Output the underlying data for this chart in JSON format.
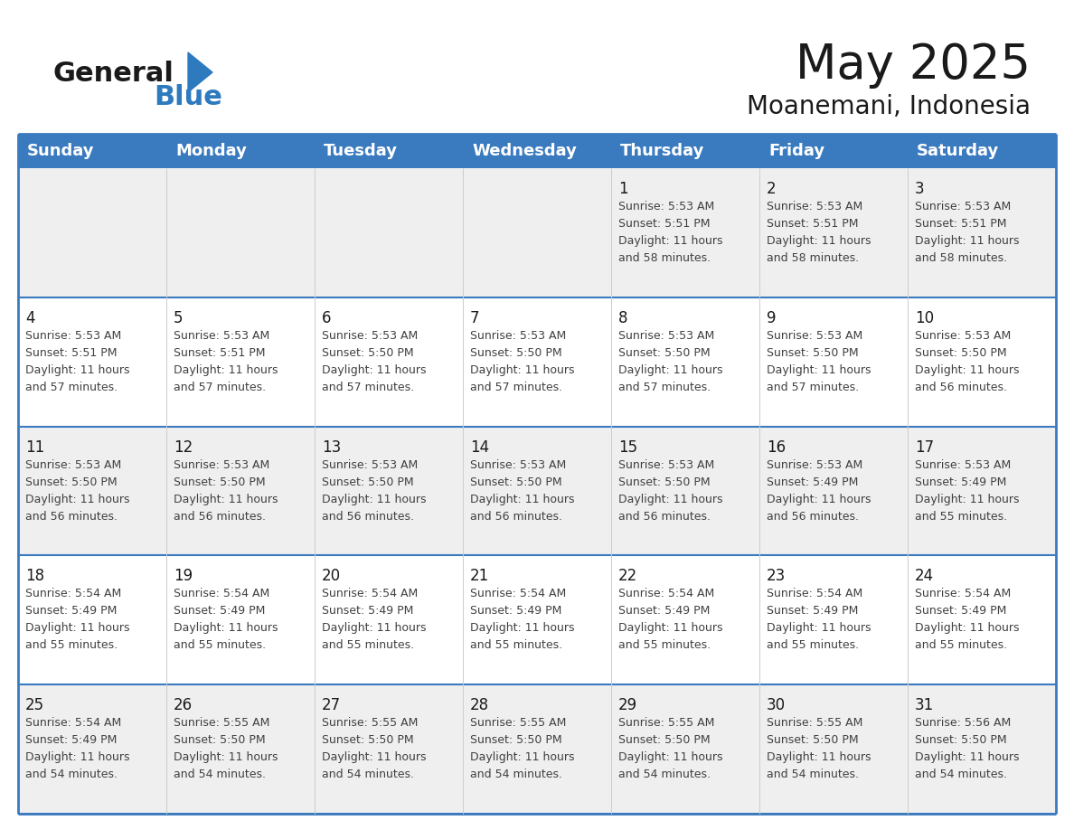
{
  "title": "May 2025",
  "subtitle": "Moanemani, Indonesia",
  "days_of_week": [
    "Sunday",
    "Monday",
    "Tuesday",
    "Wednesday",
    "Thursday",
    "Friday",
    "Saturday"
  ],
  "header_bg": "#3a7abf",
  "header_text": "#ffffff",
  "row_bg_odd": "#efefef",
  "row_bg_even": "#ffffff",
  "day_number_color": "#1a1a1a",
  "text_color": "#404040",
  "grid_line_color": "#3a7abf",
  "background_color": "#ffffff",
  "logo_general_color": "#1a1a1a",
  "logo_blue_color": "#2e7abf",
  "title_color": "#1a1a1a",
  "subtitle_color": "#1a1a1a",
  "weeks": [
    [
      {
        "day": null,
        "sunrise": null,
        "sunset": null,
        "daylight": null
      },
      {
        "day": null,
        "sunrise": null,
        "sunset": null,
        "daylight": null
      },
      {
        "day": null,
        "sunrise": null,
        "sunset": null,
        "daylight": null
      },
      {
        "day": null,
        "sunrise": null,
        "sunset": null,
        "daylight": null
      },
      {
        "day": 1,
        "sunrise": "5:53 AM",
        "sunset": "5:51 PM",
        "daylight": "11 hours and 58 minutes."
      },
      {
        "day": 2,
        "sunrise": "5:53 AM",
        "sunset": "5:51 PM",
        "daylight": "11 hours and 58 minutes."
      },
      {
        "day": 3,
        "sunrise": "5:53 AM",
        "sunset": "5:51 PM",
        "daylight": "11 hours and 58 minutes."
      }
    ],
    [
      {
        "day": 4,
        "sunrise": "5:53 AM",
        "sunset": "5:51 PM",
        "daylight": "11 hours and 57 minutes."
      },
      {
        "day": 5,
        "sunrise": "5:53 AM",
        "sunset": "5:51 PM",
        "daylight": "11 hours and 57 minutes."
      },
      {
        "day": 6,
        "sunrise": "5:53 AM",
        "sunset": "5:50 PM",
        "daylight": "11 hours and 57 minutes."
      },
      {
        "day": 7,
        "sunrise": "5:53 AM",
        "sunset": "5:50 PM",
        "daylight": "11 hours and 57 minutes."
      },
      {
        "day": 8,
        "sunrise": "5:53 AM",
        "sunset": "5:50 PM",
        "daylight": "11 hours and 57 minutes."
      },
      {
        "day": 9,
        "sunrise": "5:53 AM",
        "sunset": "5:50 PM",
        "daylight": "11 hours and 57 minutes."
      },
      {
        "day": 10,
        "sunrise": "5:53 AM",
        "sunset": "5:50 PM",
        "daylight": "11 hours and 56 minutes."
      }
    ],
    [
      {
        "day": 11,
        "sunrise": "5:53 AM",
        "sunset": "5:50 PM",
        "daylight": "11 hours and 56 minutes."
      },
      {
        "day": 12,
        "sunrise": "5:53 AM",
        "sunset": "5:50 PM",
        "daylight": "11 hours and 56 minutes."
      },
      {
        "day": 13,
        "sunrise": "5:53 AM",
        "sunset": "5:50 PM",
        "daylight": "11 hours and 56 minutes."
      },
      {
        "day": 14,
        "sunrise": "5:53 AM",
        "sunset": "5:50 PM",
        "daylight": "11 hours and 56 minutes."
      },
      {
        "day": 15,
        "sunrise": "5:53 AM",
        "sunset": "5:50 PM",
        "daylight": "11 hours and 56 minutes."
      },
      {
        "day": 16,
        "sunrise": "5:53 AM",
        "sunset": "5:49 PM",
        "daylight": "11 hours and 56 minutes."
      },
      {
        "day": 17,
        "sunrise": "5:53 AM",
        "sunset": "5:49 PM",
        "daylight": "11 hours and 55 minutes."
      }
    ],
    [
      {
        "day": 18,
        "sunrise": "5:54 AM",
        "sunset": "5:49 PM",
        "daylight": "11 hours and 55 minutes."
      },
      {
        "day": 19,
        "sunrise": "5:54 AM",
        "sunset": "5:49 PM",
        "daylight": "11 hours and 55 minutes."
      },
      {
        "day": 20,
        "sunrise": "5:54 AM",
        "sunset": "5:49 PM",
        "daylight": "11 hours and 55 minutes."
      },
      {
        "day": 21,
        "sunrise": "5:54 AM",
        "sunset": "5:49 PM",
        "daylight": "11 hours and 55 minutes."
      },
      {
        "day": 22,
        "sunrise": "5:54 AM",
        "sunset": "5:49 PM",
        "daylight": "11 hours and 55 minutes."
      },
      {
        "day": 23,
        "sunrise": "5:54 AM",
        "sunset": "5:49 PM",
        "daylight": "11 hours and 55 minutes."
      },
      {
        "day": 24,
        "sunrise": "5:54 AM",
        "sunset": "5:49 PM",
        "daylight": "11 hours and 55 minutes."
      }
    ],
    [
      {
        "day": 25,
        "sunrise": "5:54 AM",
        "sunset": "5:49 PM",
        "daylight": "11 hours and 54 minutes."
      },
      {
        "day": 26,
        "sunrise": "5:55 AM",
        "sunset": "5:50 PM",
        "daylight": "11 hours and 54 minutes."
      },
      {
        "day": 27,
        "sunrise": "5:55 AM",
        "sunset": "5:50 PM",
        "daylight": "11 hours and 54 minutes."
      },
      {
        "day": 28,
        "sunrise": "5:55 AM",
        "sunset": "5:50 PM",
        "daylight": "11 hours and 54 minutes."
      },
      {
        "day": 29,
        "sunrise": "5:55 AM",
        "sunset": "5:50 PM",
        "daylight": "11 hours and 54 minutes."
      },
      {
        "day": 30,
        "sunrise": "5:55 AM",
        "sunset": "5:50 PM",
        "daylight": "11 hours and 54 minutes."
      },
      {
        "day": 31,
        "sunrise": "5:56 AM",
        "sunset": "5:50 PM",
        "daylight": "11 hours and 54 minutes."
      }
    ]
  ]
}
